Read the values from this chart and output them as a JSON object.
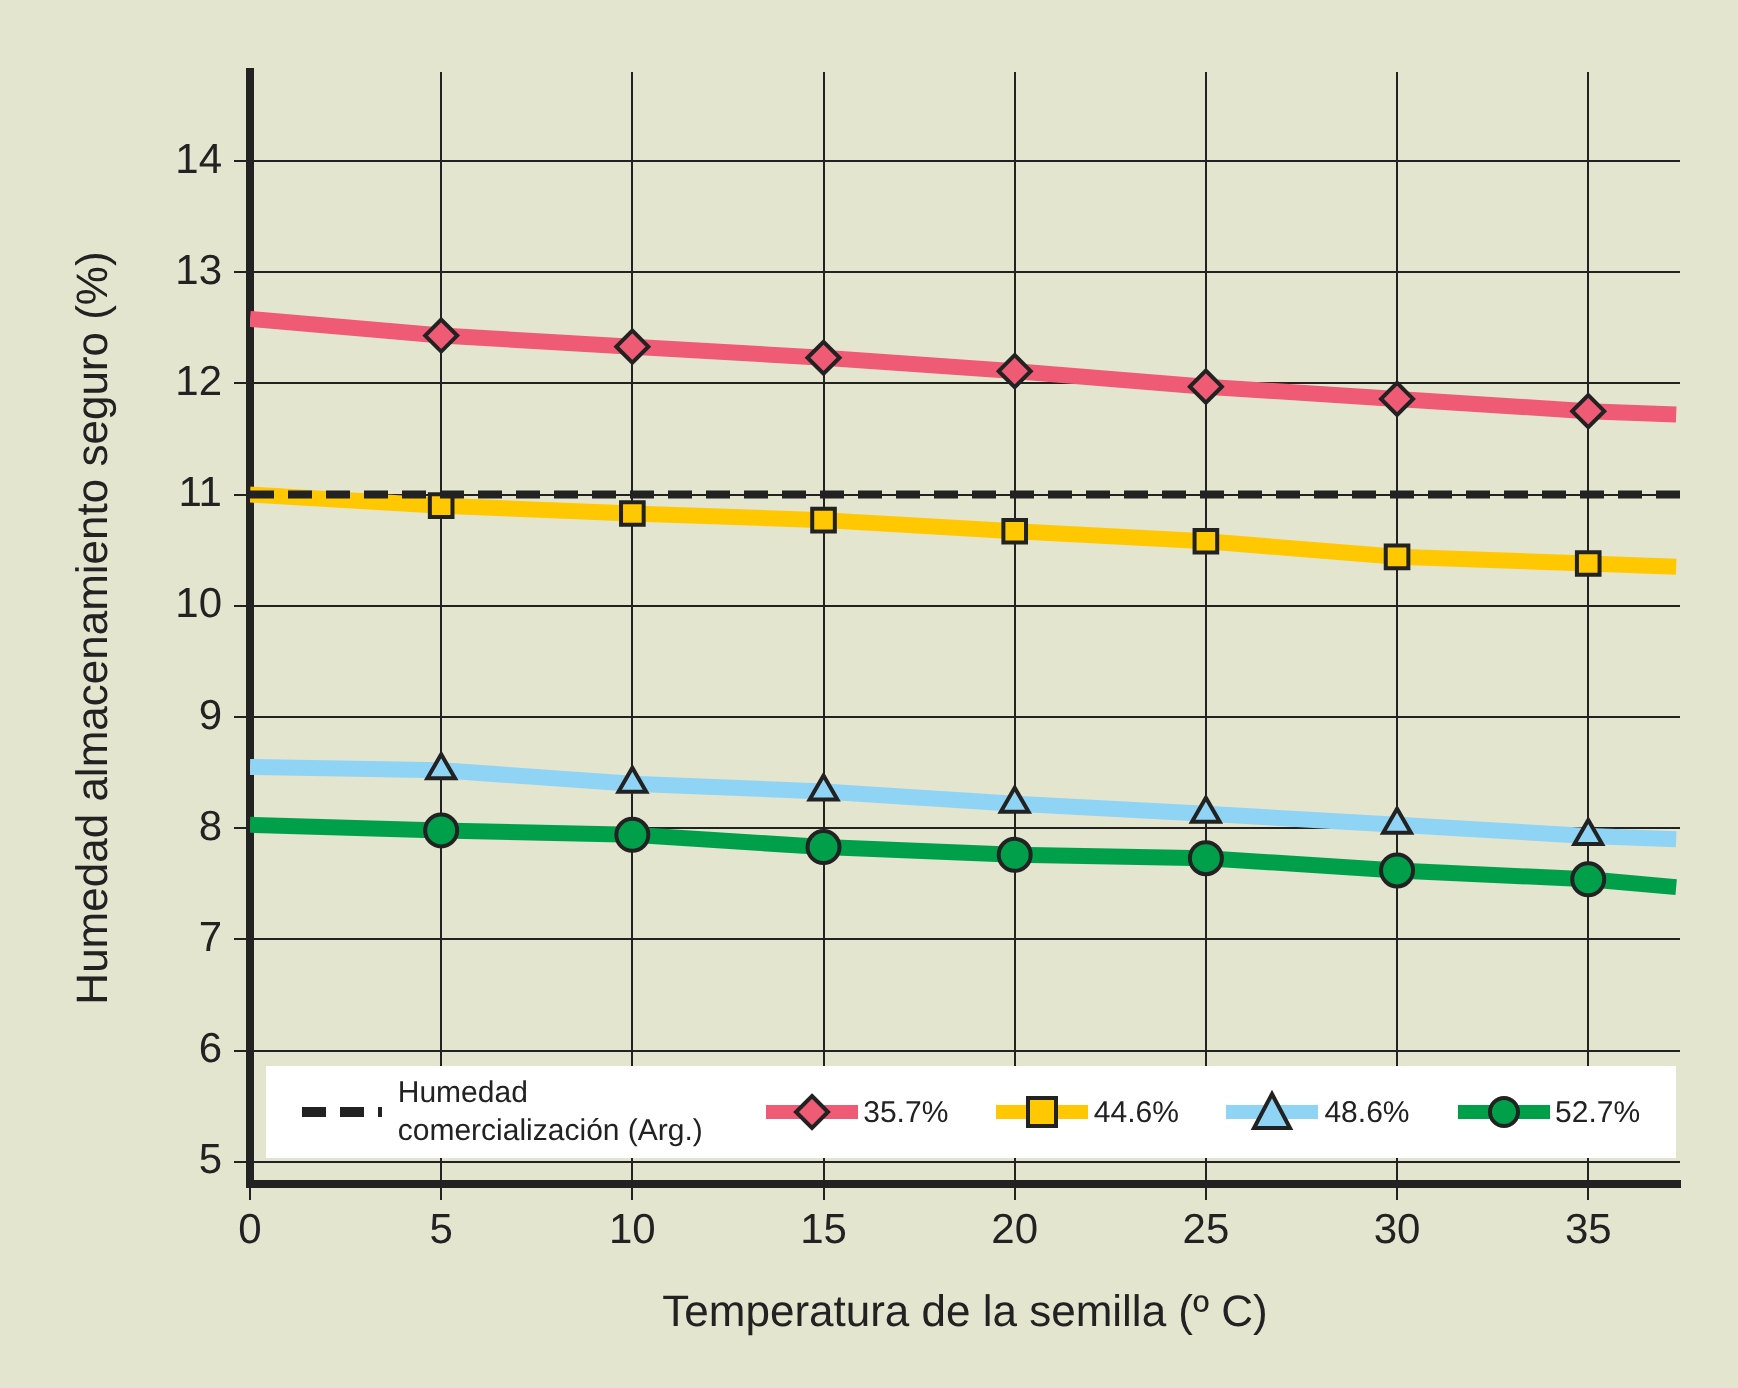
{
  "chart_data": {
    "type": "line",
    "xlabel": "Temperatura de la semilla (º C)",
    "ylabel": "Humedad almacenamiento seguro (%)",
    "xlim": [
      0,
      37.4
    ],
    "xticks": [
      0,
      5,
      10,
      15,
      20,
      25,
      30,
      35
    ],
    "ylim": [
      4.8,
      14.8
    ],
    "yticks": [
      5,
      6,
      7,
      8,
      9,
      10,
      11,
      12,
      13,
      14
    ],
    "grid": true,
    "legend": "bottom",
    "line_style": "solid",
    "ref_lines": [
      {
        "axis": "y",
        "value": 11,
        "label": "Humedad comercialización (Arg.)",
        "color": "#222222",
        "line_style": "dashed"
      }
    ],
    "series": [
      {
        "name": "35.7%",
        "color": "#ef5a74",
        "marker": "diamond",
        "x": [
          0,
          5,
          10,
          15,
          20,
          25,
          30,
          35,
          37.3
        ],
        "values": [
          12.58,
          12.43,
          12.33,
          12.23,
          12.11,
          11.97,
          11.86,
          11.75,
          11.72
        ]
      },
      {
        "name": "44.6%",
        "color": "#ffc800",
        "marker": "square",
        "x": [
          0,
          5,
          10,
          15,
          20,
          25,
          30,
          35,
          37.3
        ],
        "values": [
          11.0,
          10.9,
          10.83,
          10.77,
          10.67,
          10.58,
          10.44,
          10.38,
          10.35
        ]
      },
      {
        "name": "48.6%",
        "color": "#8fd3f5",
        "marker": "triangle",
        "x": [
          0,
          5,
          10,
          15,
          20,
          25,
          30,
          35,
          37.3
        ],
        "values": [
          8.55,
          8.52,
          8.4,
          8.33,
          8.22,
          8.13,
          8.03,
          7.93,
          7.9
        ]
      },
      {
        "name": "52.7%",
        "color": "#00a04b",
        "marker": "circle",
        "x": [
          0,
          5,
          10,
          15,
          20,
          25,
          30,
          35,
          37.3
        ],
        "values": [
          8.03,
          7.98,
          7.94,
          7.83,
          7.76,
          7.73,
          7.62,
          7.54,
          7.47
        ]
      }
    ]
  }
}
